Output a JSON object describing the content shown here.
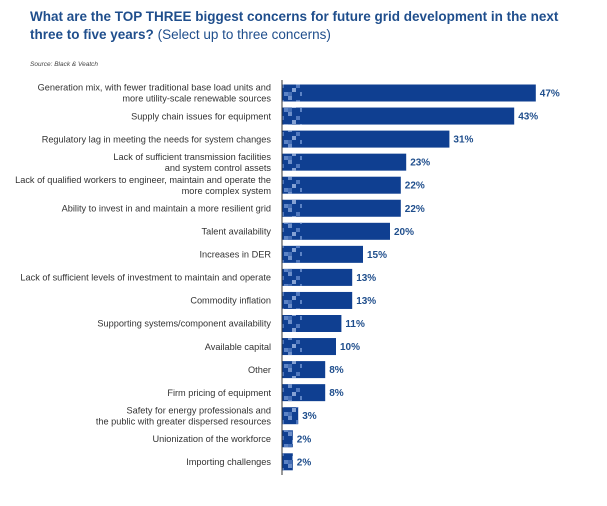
{
  "header": {
    "title_bold": "What are the TOP THREE biggest concerns for future grid development in the next three to five years?",
    "title_sub": "(Select up to three concerns)",
    "source": "Source: Black & Veatch"
  },
  "colors": {
    "bar": "#0f3f91",
    "bar_light": "#3a67b3",
    "axis": "#333333",
    "value_text": "#1f4e8c",
    "title_text": "#1f4e8c"
  },
  "chart_data": {
    "type": "bar",
    "orientation": "horizontal",
    "categories": [
      "Generation mix, with fewer traditional base load units and\nmore utility-scale renewable sources",
      "Supply chain issues for equipment",
      "Regulatory lag in meeting the needs for system changes",
      "Lack of sufficient transmission facilities\nand system control assets",
      "Lack of qualified workers to engineer, maintain and operate the\nmore complex system",
      "Ability to invest in and maintain a more resilient grid",
      "Talent availability",
      "Increases in DER",
      "Lack of sufficient levels of investment to maintain and operate",
      "Commodity inflation",
      "Supporting systems/component availability",
      "Available capital",
      "Other",
      "Firm pricing of equipment",
      "Safety for energy professionals and\nthe public with greater dispersed resources",
      "Unionization of the workforce",
      "Importing challenges"
    ],
    "values": [
      47,
      43,
      31,
      23,
      22,
      22,
      20,
      15,
      13,
      13,
      11,
      10,
      8,
      8,
      3,
      2,
      2
    ],
    "value_labels": [
      "47%",
      "43%",
      "31%",
      "23%",
      "22%",
      "22%",
      "20%",
      "15%",
      "13%",
      "13%",
      "11%",
      "10%",
      "8%",
      "8%",
      "3%",
      "2%",
      "2%"
    ],
    "xlim": [
      0,
      50
    ],
    "unit": "%",
    "grid": false,
    "legend": "none"
  }
}
